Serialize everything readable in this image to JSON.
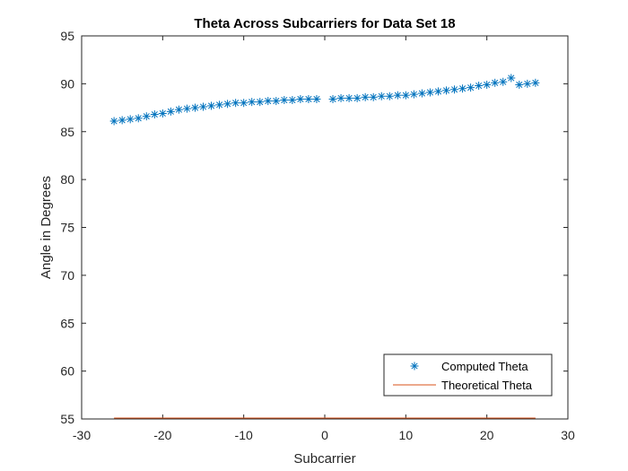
{
  "chart_data": {
    "type": "scatter",
    "title": "Theta Across Subcarriers for Data Set 18",
    "xlabel": "Subcarrier",
    "ylabel": "Angle in Degrees",
    "xlim": [
      -30,
      30
    ],
    "ylim": [
      55,
      95
    ],
    "xticks": [
      -30,
      -20,
      -10,
      0,
      10,
      20,
      30
    ],
    "yticks": [
      55,
      60,
      65,
      70,
      75,
      80,
      85,
      90,
      95
    ],
    "grid": false,
    "legend_position": "bottom-right",
    "series": [
      {
        "name": "Computed Theta",
        "marker": "asterisk",
        "color": "#0072BD",
        "points": [
          [
            -26,
            86.1
          ],
          [
            -25,
            86.2
          ],
          [
            -24,
            86.3
          ],
          [
            -23,
            86.4
          ],
          [
            -22,
            86.6
          ],
          [
            -21,
            86.8
          ],
          [
            -20,
            86.9
          ],
          [
            -19,
            87.1
          ],
          [
            -18,
            87.3
          ],
          [
            -17,
            87.4
          ],
          [
            -16,
            87.5
          ],
          [
            -15,
            87.6
          ],
          [
            -14,
            87.7
          ],
          [
            -13,
            87.8
          ],
          [
            -12,
            87.9
          ],
          [
            -11,
            88.0
          ],
          [
            -10,
            88.0
          ],
          [
            -9,
            88.1
          ],
          [
            -8,
            88.1
          ],
          [
            -7,
            88.2
          ],
          [
            -6,
            88.2
          ],
          [
            -5,
            88.3
          ],
          [
            -4,
            88.3
          ],
          [
            -3,
            88.4
          ],
          [
            -2,
            88.4
          ],
          [
            -1,
            88.4
          ],
          [
            1,
            88.4
          ],
          [
            2,
            88.5
          ],
          [
            3,
            88.5
          ],
          [
            4,
            88.5
          ],
          [
            5,
            88.6
          ],
          [
            6,
            88.6
          ],
          [
            7,
            88.7
          ],
          [
            8,
            88.7
          ],
          [
            9,
            88.8
          ],
          [
            10,
            88.8
          ],
          [
            11,
            88.9
          ],
          [
            12,
            89.0
          ],
          [
            13,
            89.1
          ],
          [
            14,
            89.2
          ],
          [
            15,
            89.3
          ],
          [
            16,
            89.4
          ],
          [
            17,
            89.5
          ],
          [
            18,
            89.6
          ],
          [
            19,
            89.8
          ],
          [
            20,
            89.9
          ],
          [
            21,
            90.1
          ],
          [
            22,
            90.2
          ],
          [
            23,
            90.6
          ],
          [
            24,
            89.9
          ],
          [
            25,
            90.0
          ],
          [
            26,
            90.1
          ]
        ]
      },
      {
        "name": "Theoretical Theta",
        "marker": "line",
        "color": "#D95319",
        "points": [
          [
            -26,
            55
          ],
          [
            26,
            55
          ]
        ]
      }
    ]
  }
}
